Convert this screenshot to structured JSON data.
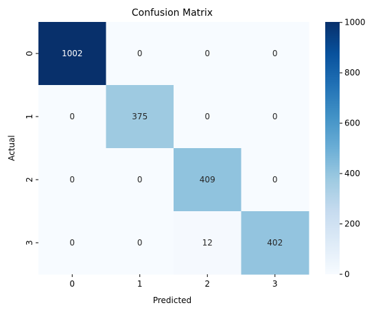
{
  "chart_data": {
    "type": "heatmap",
    "title": "Confusion Matrix",
    "xlabel": "Predicted",
    "ylabel": "Actual",
    "x_categories": [
      "0",
      "1",
      "2",
      "3"
    ],
    "y_categories": [
      "0",
      "1",
      "2",
      "3"
    ],
    "values": [
      [
        1002,
        0,
        0,
        0
      ],
      [
        0,
        375,
        0,
        0
      ],
      [
        0,
        0,
        409,
        0
      ],
      [
        0,
        0,
        12,
        402
      ]
    ],
    "colormap": "Blues",
    "colorbar": {
      "min": 0,
      "max": 1002,
      "ticks": [
        0,
        200,
        400,
        600,
        800,
        1000
      ]
    },
    "grid": false
  }
}
